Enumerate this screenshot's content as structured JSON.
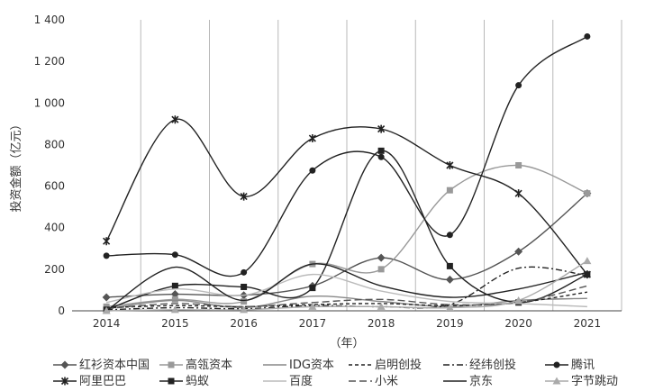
{
  "chart_data": {
    "type": "line",
    "ylabel": "投资金额（亿元）",
    "xlabel": "（年）",
    "ylim": [
      0,
      1400
    ],
    "yticks": [
      0,
      200,
      400,
      600,
      800,
      1000,
      1200,
      1400
    ],
    "ytick_labels": [
      "0",
      "200",
      "400",
      "600",
      "800",
      "1 000",
      "1 200",
      "1 400"
    ],
    "x": [
      "2014",
      "2015",
      "2016",
      "2017",
      "2018",
      "2019",
      "2020",
      "2021"
    ],
    "grid": "vertical",
    "legend_position": "bottom",
    "series": [
      {
        "name": "红衫资本中国",
        "values": [
          65,
          80,
          75,
          120,
          255,
          150,
          285,
          565
        ],
        "color": "#555555",
        "marker": "diamond",
        "dash": ""
      },
      {
        "name": "高瓴资本",
        "values": [
          20,
          55,
          45,
          225,
          200,
          580,
          700,
          565
        ],
        "color": "#999999",
        "marker": "square",
        "dash": ""
      },
      {
        "name": "IDG资本",
        "values": [
          10,
          50,
          15,
          70,
          45,
          20,
          50,
          60
        ],
        "color": "#888888",
        "marker": "none",
        "dash": ""
      },
      {
        "name": "启明创投",
        "values": [
          15,
          25,
          20,
          30,
          35,
          25,
          40,
          90
        ],
        "color": "#222222",
        "marker": "none",
        "dash": "4,3"
      },
      {
        "name": "经纬创投",
        "values": [
          5,
          15,
          10,
          25,
          20,
          30,
          205,
          170
        ],
        "color": "#222222",
        "marker": "none",
        "dash": "7,3,2,3"
      },
      {
        "name": "腾讯",
        "values": [
          265,
          270,
          185,
          675,
          740,
          365,
          1085,
          1320
        ],
        "color": "#222222",
        "marker": "circle",
        "dash": ""
      },
      {
        "name": "阿里巴巴",
        "values": [
          335,
          920,
          550,
          830,
          875,
          700,
          565,
          175
        ],
        "color": "#222222",
        "marker": "star",
        "dash": ""
      },
      {
        "name": "蚂蚁",
        "values": [
          5,
          120,
          115,
          110,
          770,
          215,
          40,
          175
        ],
        "color": "#222222",
        "marker": "square",
        "dash": ""
      },
      {
        "name": "百度",
        "values": [
          40,
          105,
          75,
          175,
          95,
          45,
          35,
          20
        ],
        "color": "#bbbbbb",
        "marker": "none",
        "dash": ""
      },
      {
        "name": "小米",
        "values": [
          10,
          35,
          20,
          40,
          55,
          30,
          40,
          120
        ],
        "color": "#555555",
        "marker": "none",
        "dash": "8,4"
      },
      {
        "name": "京东",
        "values": [
          0,
          210,
          50,
          225,
          120,
          65,
          105,
          185
        ],
        "color": "#222222",
        "marker": "none",
        "dash": ""
      },
      {
        "name": "字节跳动",
        "values": [
          0,
          5,
          5,
          20,
          20,
          15,
          50,
          240
        ],
        "color": "#aaaaaa",
        "marker": "triangle",
        "dash": ""
      }
    ]
  }
}
